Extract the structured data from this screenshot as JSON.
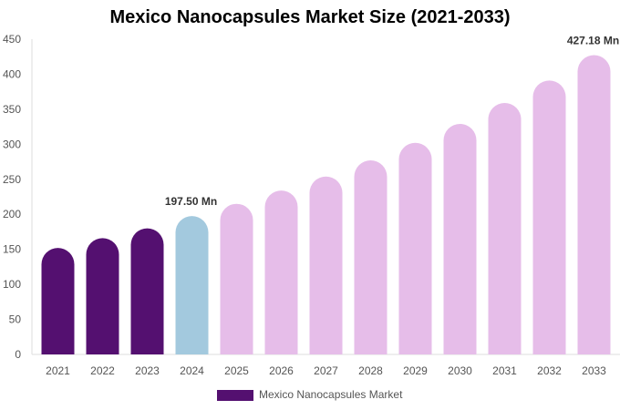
{
  "chart_data": {
    "type": "bar",
    "title": "Mexico Nanocapsules Market Size (2021-2033)",
    "categories": [
      "2021",
      "2022",
      "2023",
      "2024",
      "2025",
      "2026",
      "2027",
      "2028",
      "2029",
      "2030",
      "2031",
      "2032",
      "2033"
    ],
    "series": [
      {
        "name": "Mexico Nanocapsules Market",
        "values": [
          152,
          166,
          180,
          197.5,
          215,
          234,
          254,
          277,
          302,
          329,
          359,
          391,
          427.18
        ]
      }
    ],
    "ylim": [
      0,
      450
    ],
    "yticks": [
      0,
      50,
      100,
      150,
      200,
      250,
      300,
      350,
      400,
      450
    ],
    "data_labels": [
      {
        "index": 3,
        "text": "197.50 Mn"
      },
      {
        "index": 12,
        "text": "427.18 Mn"
      }
    ],
    "colors": {
      "historical": "#541070",
      "base_year": "#a3c9de",
      "forecast": "#e6bde9",
      "legend": "#541070"
    },
    "legend_position": "bottom",
    "grid": false
  }
}
